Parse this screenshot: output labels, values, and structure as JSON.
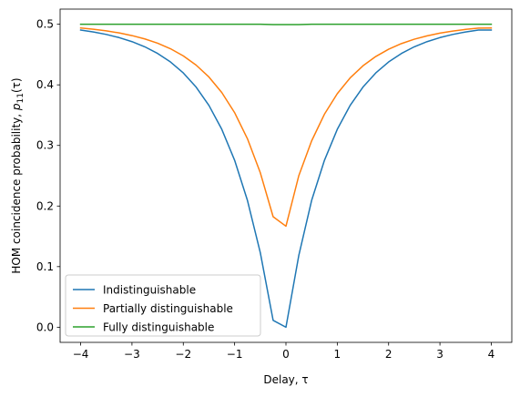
{
  "chart_data": {
    "type": "line",
    "xlabel": "Delay, τ",
    "ylabel_main": "HOM coincidence probability, ",
    "ylabel_math_p": "p",
    "ylabel_math_sub": "11",
    "ylabel_math_arg": "(τ)",
    "xlim": [
      -4.4,
      4.4
    ],
    "ylim": [
      -0.025,
      0.525
    ],
    "xticks": [
      -4,
      -3,
      -2,
      -1,
      0,
      1,
      2,
      3,
      4
    ],
    "xtick_labels": [
      "−4",
      "−3",
      "−2",
      "−1",
      "0",
      "1",
      "2",
      "3",
      "4"
    ],
    "yticks": [
      0.0,
      0.1,
      0.2,
      0.3,
      0.4,
      0.5
    ],
    "ytick_labels": [
      "0.0",
      "0.1",
      "0.2",
      "0.3",
      "0.4",
      "0.5"
    ],
    "grid": false,
    "legend_position": "lower-left",
    "x": [
      -4.0,
      -3.75,
      -3.5,
      -3.25,
      -3.0,
      -2.75,
      -2.5,
      -2.25,
      -2.0,
      -1.75,
      -1.5,
      -1.25,
      -1.0,
      -0.75,
      -0.5,
      -0.25,
      0.0,
      0.25,
      0.5,
      0.75,
      1.0,
      1.25,
      1.5,
      1.75,
      2.0,
      2.25,
      2.5,
      2.75,
      3.0,
      3.25,
      3.5,
      3.75,
      4.0
    ],
    "series": [
      {
        "name": "Indistinguishable",
        "color": "#1f77b4",
        "values": [
          0.4905,
          0.4873,
          0.4832,
          0.478,
          0.4713,
          0.4628,
          0.4518,
          0.4378,
          0.4197,
          0.3963,
          0.366,
          0.3266,
          0.2755,
          0.2092,
          0.1231,
          0.0114,
          0.0,
          0.1184,
          0.2092,
          0.2755,
          0.3266,
          0.366,
          0.3963,
          0.4197,
          0.4378,
          0.4518,
          0.4628,
          0.4713,
          0.478,
          0.4832,
          0.4873,
          0.4905,
          0.4905
        ]
      },
      {
        "name": "Partially distinguishable",
        "color": "#ff7f0e",
        "values": [
          0.4938,
          0.4917,
          0.4891,
          0.4857,
          0.4813,
          0.4758,
          0.4687,
          0.4596,
          0.4478,
          0.4326,
          0.4129,
          0.3873,
          0.3541,
          0.311,
          0.255,
          0.1824,
          0.1667,
          0.25,
          0.3075,
          0.3516,
          0.3854,
          0.4114,
          0.4314,
          0.4468,
          0.4588,
          0.4681,
          0.4753,
          0.4809,
          0.4853,
          0.4888,
          0.4915,
          0.4936,
          0.4938
        ]
      },
      {
        "name": "Fully distinguishable",
        "color": "#2ca02c",
        "values": [
          0.5,
          0.5,
          0.5,
          0.5,
          0.5,
          0.5,
          0.5,
          0.5,
          0.5,
          0.5,
          0.5,
          0.5,
          0.5,
          0.5,
          0.5,
          0.4995,
          0.4995,
          0.4995,
          0.5,
          0.5,
          0.5,
          0.5,
          0.5,
          0.5,
          0.5,
          0.5,
          0.5,
          0.5,
          0.5,
          0.5,
          0.5,
          0.5,
          0.5
        ]
      }
    ]
  }
}
